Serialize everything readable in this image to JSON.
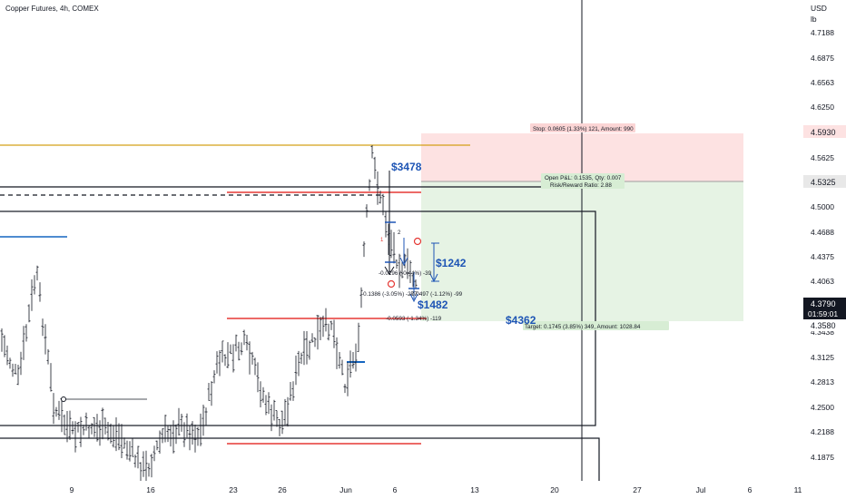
{
  "title": "Copper Futures, 4h, COMEX",
  "currency": "USD",
  "unit": "lb",
  "price_axis": {
    "ticks": [
      "4.7188",
      "4.6875",
      "4.6563",
      "4.6250",
      "4.5625",
      "4.5000",
      "4.4688",
      "4.4375",
      "4.4063",
      "4.3438",
      "4.3125",
      "4.2813",
      "4.2500",
      "4.2188",
      "4.1875"
    ]
  },
  "time_axis": {
    "labels": [
      "9",
      "16",
      "23",
      "26",
      "Jun",
      "6",
      "13",
      "20",
      "27",
      "Jul",
      "6",
      "11"
    ]
  },
  "price_tags": {
    "stop": "4.5930",
    "entry": "4.5325",
    "last": "4.3790",
    "countdown": "01:59:01",
    "target": "4.3580"
  },
  "position": {
    "stop_label": "Stop: 0.0605 (1.33%) 121, Amount: 990",
    "open_label": "Open P&L: 0.1535, Qty: 0.007",
    "rr_label": "Risk/Reward Ratio: 2.88",
    "target_label": "Target: 0.1745 (3.85%) 349, Amount: 1028.84"
  },
  "annotations": {
    "a1": "$3478",
    "a2": "$1242",
    "a3": "$1482",
    "a4": "$4362",
    "m1": "-0.0196 (-0.44%) -39",
    "m2": "-0.1386 (-3.05%) -277",
    "m3": "-0.0497 (-1.12%) -99",
    "m4": "-0.0593 (-1.34%) -119",
    "n1": "1",
    "n2": "2",
    "n3": "1"
  },
  "colors": {
    "up": "#26a69a",
    "bar": "#131722",
    "stop_zone": "#fde2e2",
    "target_zone": "#e3f2e3",
    "red_line": "#e53935",
    "blue_text": "#1e55b5",
    "gold_line": "#d4a017",
    "blue_line": "#1565c0"
  },
  "chart_data": {
    "type": "ohlc",
    "symbol": "Copper Futures",
    "interval": "4h",
    "exchange": "COMEX",
    "last_price": 4.379,
    "position_levels": {
      "stop": 4.593,
      "entry": 4.5325,
      "target": 4.358
    },
    "ylim": [
      4.172,
      4.746
    ]
  }
}
